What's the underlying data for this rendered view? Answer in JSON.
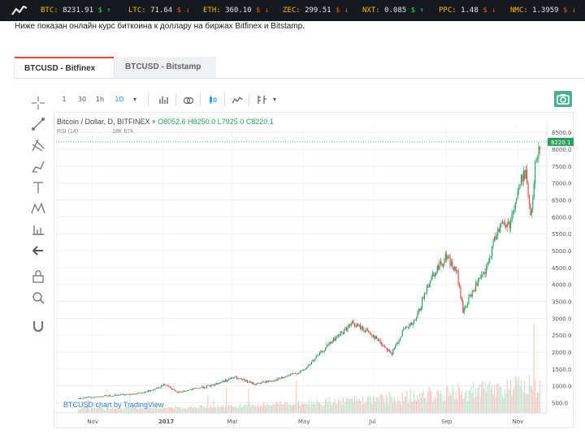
{
  "ticker": [
    {
      "symbol": "BTC:",
      "price": "8231.91",
      "change_icon": "dollar-up",
      "dir": "up",
      "arrow": "↑"
    },
    {
      "symbol": "LTC:",
      "price": "71.64",
      "change_icon": "dollar-down",
      "dir": "down",
      "arrow": "↓"
    },
    {
      "symbol": "ETH:",
      "price": "360.10",
      "change_icon": "dollar-down",
      "dir": "down",
      "arrow": "↓"
    },
    {
      "symbol": "ZEC:",
      "price": "299.51",
      "change_icon": "dollar-down",
      "dir": "down",
      "arrow": "↓"
    },
    {
      "symbol": "NXT:",
      "price": "0.085",
      "change_icon": "dollar-up",
      "dir": "up",
      "arrow": "↑"
    },
    {
      "symbol": "PPC:",
      "price": "1.48",
      "change_icon": "dollar-down",
      "dir": "down",
      "arrow": "↓"
    },
    {
      "symbol": "NMC:",
      "price": "1.3959",
      "change_icon": "dollar-down",
      "dir": "down",
      "arrow": "↓"
    }
  ],
  "intro_text": "Ниже показан онлайн курс биткоина к доллару на биржах Bitfinex и Bitstamp.",
  "tabs": [
    {
      "label": "BTCUSD - Bitfinex",
      "active": true
    },
    {
      "label": "BTCUSD - Bitstamp",
      "active": false
    }
  ],
  "toolbar": {
    "intervals": [
      "1",
      "30",
      "1h",
      "1D"
    ],
    "active_interval": "1D"
  },
  "legend": {
    "title": "Bitcoin / Dollar, D, BITFINEX",
    "open": "O8052.6",
    "high": "H8250.0",
    "low": "L7925.0",
    "close": "C8220.1"
  },
  "rsi_label": "RSI (14)",
  "rsi_values": "18K 67K",
  "watermark": {
    "symbol": "BTCUSD",
    "rest": " chart by TradingView"
  },
  "colors": {
    "up": "#2e9d62",
    "down": "#d84a4a",
    "price_tag": "#2e9d62"
  },
  "chart_data": {
    "type": "candlestick",
    "x_ticks": [
      "Nov",
      "2017",
      "Mar",
      "May",
      "Jul",
      "Sep",
      "Nov"
    ],
    "y_ticks": [
      500,
      1000,
      1500,
      2000,
      2500,
      3000,
      3500,
      4000,
      4500,
      5000,
      5500,
      6000,
      6500,
      7000,
      7500,
      8000,
      8500
    ],
    "last_price_label": "8220.1",
    "ylim": [
      200,
      8650
    ],
    "grid": true,
    "series": [
      {
        "x": "2016-10-20",
        "v": 630
      },
      {
        "x": "2016-11-15",
        "v": 710
      },
      {
        "x": "2016-12-15",
        "v": 790
      },
      {
        "x": "2017-01-03",
        "v": 1050
      },
      {
        "x": "2017-01-12",
        "v": 800
      },
      {
        "x": "2017-02-10",
        "v": 1000
      },
      {
        "x": "2017-03-03",
        "v": 1250
      },
      {
        "x": "2017-03-20",
        "v": 1050
      },
      {
        "x": "2017-04-10",
        "v": 1200
      },
      {
        "x": "2017-05-01",
        "v": 1450
      },
      {
        "x": "2017-05-25",
        "v": 2300
      },
      {
        "x": "2017-06-12",
        "v": 2850
      },
      {
        "x": "2017-06-28",
        "v": 2550
      },
      {
        "x": "2017-07-16",
        "v": 1950
      },
      {
        "x": "2017-07-25",
        "v": 2600
      },
      {
        "x": "2017-08-05",
        "v": 2900
      },
      {
        "x": "2017-08-18",
        "v": 4200
      },
      {
        "x": "2017-09-01",
        "v": 4850
      },
      {
        "x": "2017-09-10",
        "v": 4300
      },
      {
        "x": "2017-09-15",
        "v": 3200
      },
      {
        "x": "2017-09-25",
        "v": 3900
      },
      {
        "x": "2017-10-05",
        "v": 4400
      },
      {
        "x": "2017-10-15",
        "v": 5700
      },
      {
        "x": "2017-10-25",
        "v": 5800
      },
      {
        "x": "2017-11-05",
        "v": 7200
      },
      {
        "x": "2017-11-08",
        "v": 7400
      },
      {
        "x": "2017-11-12",
        "v": 5900
      },
      {
        "x": "2017-11-17",
        "v": 7800
      },
      {
        "x": "2017-11-20",
        "v": 8220
      }
    ]
  }
}
